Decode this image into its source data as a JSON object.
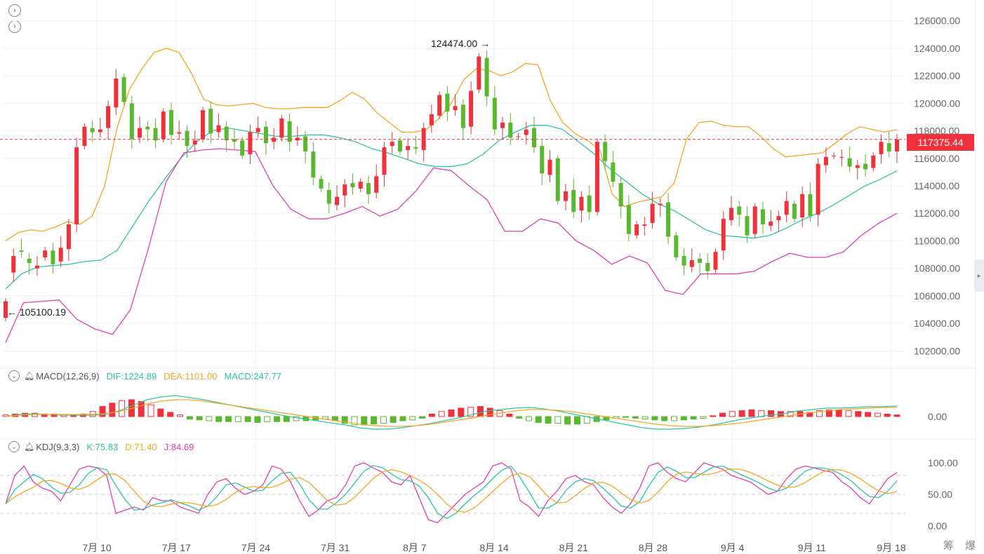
{
  "controls": {
    "expand_icon_1": "chevron-right-icon",
    "expand_icon_2": "chevron-right-icon"
  },
  "price_panel": {
    "current_price": "117375.44",
    "high_label": "124474.00",
    "low_label": "105100.19",
    "y_ticks": [
      "126000.00",
      "124000.00",
      "122000.00",
      "120000.00",
      "118000.00",
      "116000.00",
      "114000.00",
      "112000.00",
      "110000.00",
      "108000.00",
      "106000.00",
      "104000.00",
      "102000.00"
    ],
    "y_tick_values": [
      126000,
      124000,
      122000,
      120000,
      118000,
      116000,
      114000,
      112000,
      110000,
      108000,
      106000,
      104000,
      102000
    ],
    "ylim": [
      101000,
      127000
    ]
  },
  "macd_panel": {
    "title": "MACD(12,26,9)",
    "dif": "DIF:1224.89",
    "dea": "DEA:1101.00",
    "macd": "MACD:247.77",
    "y_tick": "0.00"
  },
  "kdj_panel": {
    "title": "KDJ(9,3,3)",
    "k": "K:75.83",
    "d": "D:71.40",
    "j": "J:84.69",
    "y_ticks": [
      "100.00",
      "50.00",
      "0.00"
    ]
  },
  "x_axis": {
    "labels": [
      "7月 10",
      "7月 17",
      "7月 24",
      "7月 31",
      "8月 7",
      "8月 14",
      "8月 21",
      "8月 28",
      "9月 4",
      "9月 11",
      "9月 18"
    ]
  },
  "corner_text": "筹 爆",
  "colors": {
    "up": "#f0313b",
    "down": "#5ab82e",
    "mid": "#2ec4a6",
    "upper": "#f5a623",
    "lower": "#e040b0",
    "dea": "#f5a623",
    "j": "#e040b0"
  },
  "chart_data": {
    "type": "candlestick",
    "title": "",
    "x_labels": [
      "7月 10",
      "7月 17",
      "7月 24",
      "7月 31",
      "8月 7",
      "8月 14",
      "8月 21",
      "8月 28",
      "9月 4",
      "9月 11",
      "9月 18"
    ],
    "ylim": [
      101000,
      127000
    ],
    "close_series": [
      105600,
      108900,
      109200,
      108400,
      108200,
      109300,
      108300,
      109500,
      111200,
      116800,
      118300,
      117900,
      118100,
      119800,
      121800,
      120100,
      117400,
      118200,
      118100,
      117300,
      119400,
      117700,
      117900,
      116900,
      117300,
      119500,
      117800,
      118400,
      117300,
      117200,
      116200,
      117900,
      118200,
      117100,
      117500,
      118900,
      117200,
      117500,
      116500,
      114600,
      113800,
      112700,
      113200,
      114100,
      113900,
      114300,
      113400,
      114700,
      116800,
      117200,
      116500,
      116900,
      116700,
      118200,
      119200,
      120600,
      119400,
      119800,
      118200,
      120900,
      123400,
      120500,
      118100,
      118600,
      117500,
      117600,
      118100,
      116800,
      114900,
      115900,
      112900,
      113600,
      112100,
      113200,
      112100,
      117200,
      115800,
      114300,
      112500,
      110500,
      111200,
      111200,
      112700,
      112700,
      110300,
      108800,
      108200,
      108600,
      108400,
      107800,
      109200,
      111600,
      112400,
      111900,
      110400,
      112500,
      111200,
      111400,
      111800,
      112900,
      111600,
      113400,
      111800,
      115600,
      116100,
      116200,
      116100,
      115400,
      115500,
      115200,
      116200,
      117200,
      116500,
      117375
    ],
    "open_series": [
      104400,
      107700,
      109300,
      108700,
      108000,
      108800,
      109300,
      108500,
      109400,
      111200,
      116900,
      118200,
      117900,
      118200,
      119700,
      121900,
      120000,
      117500,
      118300,
      118200,
      117400,
      119500,
      117800,
      118000,
      117000,
      117400,
      119600,
      117900,
      118300,
      117400,
      117300,
      116300,
      117900,
      118300,
      117200,
      117500,
      118700,
      117300,
      117600,
      116500,
      114500,
      113700,
      112600,
      113300,
      114200,
      113800,
      114200,
      113500,
      114800,
      116900,
      117300,
      116600,
      116800,
      116600,
      118400,
      119100,
      120700,
      119500,
      119900,
      118300,
      121000,
      123300,
      120400,
      118200,
      118600,
      117600,
      117700,
      118200,
      116900,
      114800,
      116000,
      112900,
      113700,
      112200,
      113300,
      112100,
      117200,
      115700,
      114200,
      112600,
      110400,
      111100,
      111300,
      112600,
      112800,
      110400,
      108900,
      108100,
      108700,
      108400,
      107900,
      109300,
      111500,
      112500,
      111800,
      110500,
      112300,
      111100,
      111500,
      111900,
      112700,
      111700,
      113400,
      111900,
      115500,
      116200,
      116100,
      116000,
      115300,
      115600,
      115300,
      116300,
      117100,
      116500
    ],
    "series": [
      {
        "name": "",
        "values": []
      }
    ],
    "upper_band": [
      110000,
      110600,
      110800,
      110700,
      111000,
      111400,
      111200,
      111800,
      114000,
      118200,
      121000,
      122500,
      123700,
      124000,
      123700,
      122200,
      120300,
      119900,
      119800,
      119900,
      120000,
      119700,
      119600,
      119600,
      119700,
      119700,
      119700,
      120200,
      120800,
      120300,
      119300,
      118600,
      117900,
      117900,
      118100,
      118900,
      120000,
      121700,
      122500,
      122400,
      122000,
      122300,
      122900,
      122800,
      120200,
      118600,
      117800,
      117300,
      116600,
      113400,
      112500,
      112800,
      113000,
      113200,
      114200,
      117400,
      118600,
      118700,
      118400,
      118300,
      118300,
      117600,
      116700,
      116100,
      116200,
      116300,
      116400,
      117100,
      117800,
      118300,
      118100,
      117900,
      118100
    ],
    "middle_band": [
      106500,
      107600,
      108100,
      108200,
      108300,
      108500,
      108600,
      109300,
      111100,
      112900,
      114500,
      116000,
      117200,
      118000,
      118200,
      118000,
      117800,
      117600,
      117600,
      117700,
      117700,
      117500,
      117200,
      116700,
      116400,
      116000,
      115600,
      115400,
      115400,
      115600,
      116300,
      117300,
      117900,
      118400,
      118400,
      118100,
      117200,
      116300,
      115200,
      114300,
      113400,
      112700,
      112200,
      111500,
      110800,
      110400,
      110300,
      110200,
      110400,
      110900,
      111500,
      112000,
      112600,
      113300,
      114000,
      114500,
      115100
    ],
    "lower_band": [
      102600,
      105500,
      105600,
      105700,
      104300,
      103600,
      103200,
      105000,
      109400,
      114300,
      116400,
      116600,
      116700,
      116600,
      116500,
      114000,
      112300,
      111600,
      111600,
      112000,
      112500,
      111800,
      112300,
      113600,
      115300,
      115100,
      114000,
      113000,
      110700,
      110700,
      111600,
      111300,
      110000,
      109300,
      108300,
      108900,
      108400,
      106400,
      106100,
      107600,
      107600,
      107600,
      107800,
      108500,
      109100,
      108800,
      108800,
      109200,
      110400,
      111300,
      112000
    ]
  }
}
